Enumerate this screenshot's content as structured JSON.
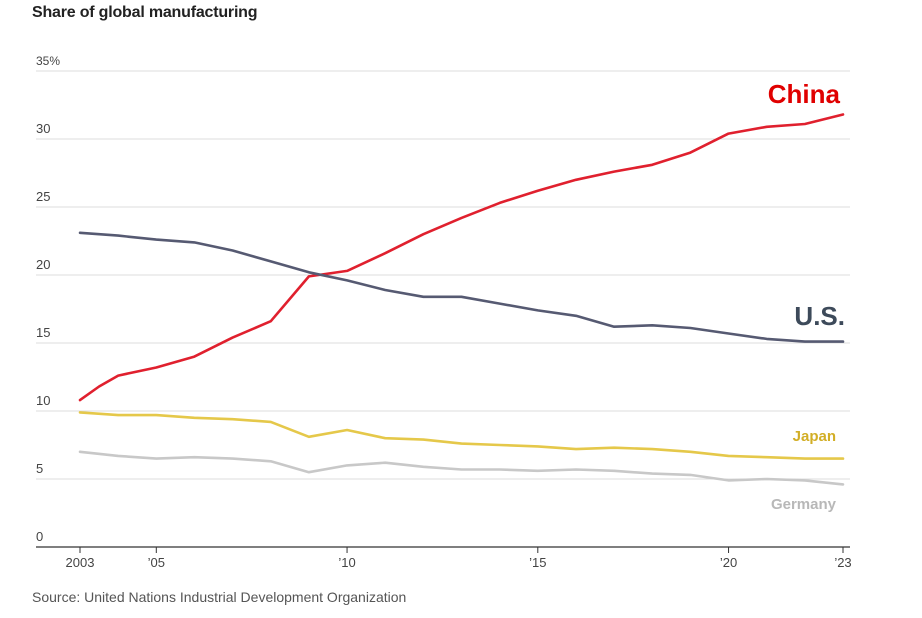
{
  "chart_data": {
    "type": "line",
    "title": "Share of global manufacturing",
    "source": "Source: United Nations Industrial Development Organization",
    "ylim": [
      0,
      35
    ],
    "xlim": [
      2003,
      2023
    ],
    "y_ticks": [
      {
        "value": 35,
        "label": "35%"
      },
      {
        "value": 30,
        "label": "30"
      },
      {
        "value": 25,
        "label": "25"
      },
      {
        "value": 20,
        "label": "20"
      },
      {
        "value": 15,
        "label": "15"
      },
      {
        "value": 10,
        "label": "10"
      },
      {
        "value": 5,
        "label": "5"
      },
      {
        "value": 0,
        "label": "0"
      }
    ],
    "x_ticks": [
      {
        "value": 2003,
        "label": "2003"
      },
      {
        "value": 2005,
        "label": "’05"
      },
      {
        "value": 2010,
        "label": "’10"
      },
      {
        "value": 2015,
        "label": "’15"
      },
      {
        "value": 2020,
        "label": "’20"
      },
      {
        "value": 2023,
        "label": "’23"
      }
    ],
    "grid": true,
    "series": [
      {
        "name": "China",
        "color": "#e0202e",
        "label_color": "#e00000",
        "x": [
          2003,
          2003.5,
          2004,
          2005,
          2006,
          2007,
          2008,
          2009,
          2010,
          2011,
          2012,
          2013,
          2014,
          2015,
          2016,
          2017,
          2018,
          2019,
          2020,
          2021,
          2022,
          2023
        ],
        "y": [
          10.8,
          11.8,
          12.6,
          13.2,
          14.0,
          15.4,
          16.6,
          19.9,
          20.3,
          21.6,
          23.0,
          24.2,
          25.3,
          26.2,
          27.0,
          27.6,
          28.1,
          29.0,
          30.4,
          30.9,
          31.1,
          31.8
        ]
      },
      {
        "name": "U.S.",
        "color": "#565a72",
        "label_color": "#3d4a5a",
        "x": [
          2003,
          2004,
          2005,
          2006,
          2007,
          2008,
          2009,
          2010,
          2011,
          2012,
          2013,
          2014,
          2015,
          2016,
          2017,
          2018,
          2019,
          2020,
          2021,
          2022,
          2023
        ],
        "y": [
          23.1,
          22.9,
          22.6,
          22.4,
          21.8,
          21.0,
          20.2,
          19.6,
          18.9,
          18.4,
          18.4,
          17.9,
          17.4,
          17.0,
          16.2,
          16.3,
          16.1,
          15.7,
          15.3,
          15.1,
          15.1
        ]
      },
      {
        "name": "Japan",
        "color": "#e5c84a",
        "label_color": "#d2ae26",
        "x": [
          2003,
          2004,
          2005,
          2006,
          2007,
          2008,
          2009,
          2010,
          2011,
          2012,
          2013,
          2014,
          2015,
          2016,
          2017,
          2018,
          2019,
          2020,
          2021,
          2022,
          2023
        ],
        "y": [
          9.9,
          9.7,
          9.7,
          9.5,
          9.4,
          9.2,
          8.1,
          8.6,
          8.0,
          7.9,
          7.6,
          7.5,
          7.4,
          7.2,
          7.3,
          7.2,
          7.0,
          6.7,
          6.6,
          6.5,
          6.5
        ]
      },
      {
        "name": "Germany",
        "color": "#c8c8c8",
        "label_color": "#b8b8b8",
        "x": [
          2003,
          2004,
          2005,
          2006,
          2007,
          2008,
          2009,
          2010,
          2011,
          2012,
          2013,
          2014,
          2015,
          2016,
          2017,
          2018,
          2019,
          2020,
          2021,
          2022,
          2023
        ],
        "y": [
          7.0,
          6.7,
          6.5,
          6.6,
          6.5,
          6.3,
          5.5,
          6.0,
          6.2,
          5.9,
          5.7,
          5.7,
          5.6,
          5.7,
          5.6,
          5.4,
          5.3,
          4.9,
          5.0,
          4.9,
          4.6
        ]
      }
    ]
  }
}
